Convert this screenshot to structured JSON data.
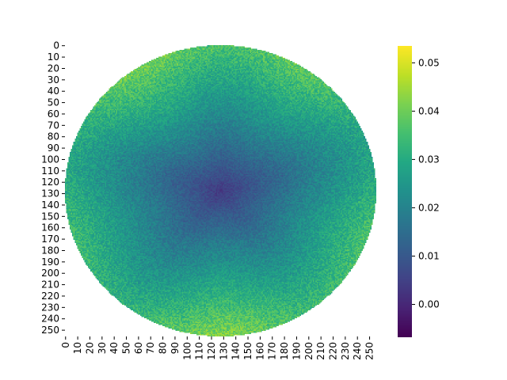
{
  "chart_data": {
    "type": "heatmap",
    "title": "",
    "xlabel": "",
    "ylabel": "",
    "grid": false,
    "colormap": "viridis",
    "rows": 256,
    "cols": 256,
    "xlim": [
      0,
      256
    ],
    "ylim": [
      256,
      0
    ],
    "x_ticks": [
      0,
      10,
      20,
      30,
      40,
      50,
      60,
      70,
      80,
      90,
      100,
      110,
      120,
      130,
      140,
      150,
      160,
      170,
      180,
      190,
      200,
      210,
      220,
      230,
      240,
      250
    ],
    "y_ticks": [
      0,
      10,
      20,
      30,
      40,
      50,
      60,
      70,
      80,
      90,
      100,
      110,
      120,
      130,
      140,
      150,
      160,
      170,
      180,
      190,
      200,
      210,
      220,
      230,
      240,
      250
    ],
    "x_tick_labels": [
      "0",
      "10",
      "20",
      "30",
      "40",
      "50",
      "60",
      "70",
      "80",
      "90",
      "100",
      "110",
      "120",
      "130",
      "140",
      "150",
      "160",
      "170",
      "180",
      "190",
      "200",
      "210",
      "220",
      "230",
      "240",
      "250"
    ],
    "y_tick_labels": [
      "0",
      "10",
      "20",
      "30",
      "40",
      "50",
      "60",
      "70",
      "80",
      "90",
      "100",
      "110",
      "120",
      "130",
      "140",
      "150",
      "160",
      "170",
      "180",
      "190",
      "200",
      "210",
      "220",
      "230",
      "240",
      "250"
    ],
    "colorbar": {
      "vmin": -0.0068,
      "vmax": 0.0535,
      "ticks": [
        0.0,
        0.01,
        0.02,
        0.03,
        0.04,
        0.05
      ],
      "tick_labels": [
        "0.00",
        "0.01",
        "0.02",
        "0.03",
        "0.04",
        "0.05"
      ],
      "placement": "right"
    },
    "field": {
      "shape": "circular-disk",
      "center": [
        128,
        128
      ],
      "radius": 128,
      "outside": "no data (blank)",
      "center_value": 0.003,
      "edge_value": 0.035,
      "noise": 0.006
    }
  }
}
